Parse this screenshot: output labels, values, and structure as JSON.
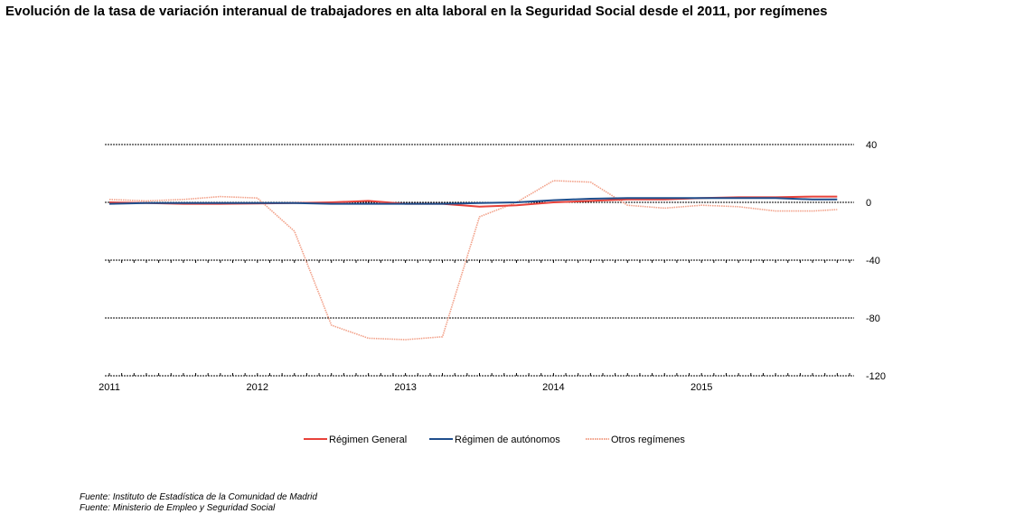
{
  "title": "Evolución de la tasa de variación interanual de trabajadores en alta laboral en la Seguridad Social desde el 2011, por regímenes",
  "sources": [
    "Fuente: Instituto de Estadística de la Comunidad de Madrid",
    "Fuente: Ministerio de Empleo y Seguridad Social"
  ],
  "chart_data": {
    "type": "line",
    "title": "Evolución de la tasa de variación interanual de trabajadores en alta laboral en la Seguridad Social desde el 2011, por regímenes",
    "xlabel": "",
    "ylabel": "",
    "x_ticks": [
      "2011",
      "2012",
      "2013",
      "2014",
      "2015"
    ],
    "y_ticks": [
      40,
      0,
      -40,
      -80,
      -120
    ],
    "ylim": [
      -120,
      40
    ],
    "grid": true,
    "legend_position": "bottom",
    "x": [
      "2011-01",
      "2011-04",
      "2011-07",
      "2011-10",
      "2012-01",
      "2012-04",
      "2012-07",
      "2012-10",
      "2013-01",
      "2013-04",
      "2013-07",
      "2013-10",
      "2014-01",
      "2014-04",
      "2014-07",
      "2014-10",
      "2015-01",
      "2015-04",
      "2015-07",
      "2015-10",
      "2015-12"
    ],
    "series": [
      {
        "name": "Régimen General",
        "color": "#e8423a",
        "style": "solid",
        "values": [
          0,
          -0.5,
          -1,
          -1,
          -0.8,
          -0.5,
          0,
          1,
          -1,
          -1,
          -3,
          -2,
          0,
          1,
          2,
          2,
          3,
          3.5,
          3.5,
          4,
          4
        ]
      },
      {
        "name": "Régimen de autónomos",
        "color": "#1f4e8c",
        "style": "solid",
        "values": [
          -1,
          -0.5,
          -0.5,
          -0.5,
          -0.5,
          -0.5,
          -1,
          -1,
          -1,
          -1,
          -0.5,
          0,
          1.5,
          2.5,
          3,
          3,
          3,
          3,
          3,
          2,
          2
        ]
      },
      {
        "name": "Otros regímenes",
        "color": "#f2a088",
        "style": "dotted",
        "values": [
          2,
          1,
          2,
          4,
          3,
          -20,
          -85,
          -94,
          -95,
          -93,
          -10,
          0,
          15,
          14,
          -2,
          -4,
          -2,
          -3,
          -6,
          -6,
          -5
        ]
      }
    ]
  }
}
